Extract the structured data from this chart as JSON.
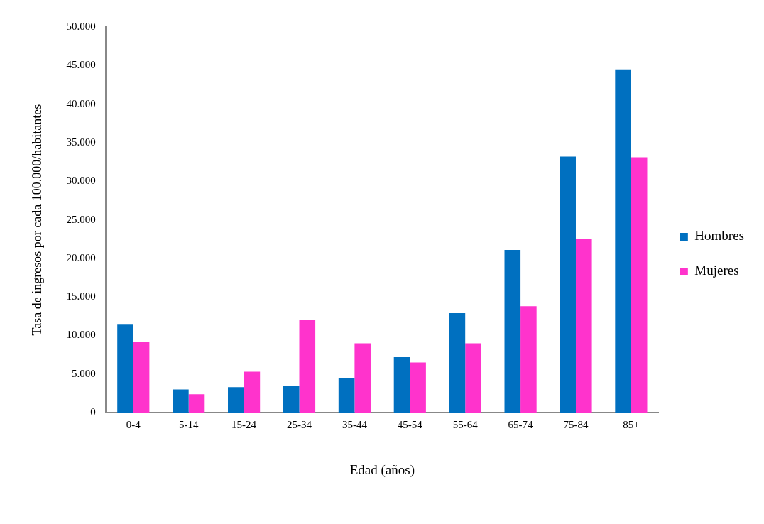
{
  "chart_data": {
    "type": "bar",
    "xlabel": "Edad (años)",
    "ylabel": "Tasa de ingresos por cada 100.000/habitantes",
    "categories": [
      "0-4",
      "5-14",
      "15-24",
      "25-34",
      "35-44",
      "45-54",
      "55-64",
      "65-74",
      "75-84",
      "85+"
    ],
    "series": [
      {
        "name": "Hombres",
        "color": "#0070c0",
        "values": [
          11400,
          3000,
          3300,
          3500,
          4500,
          7200,
          12900,
          21100,
          33200,
          44500
        ]
      },
      {
        "name": "Mujeres",
        "color": "#ff33cc",
        "values": [
          9200,
          2400,
          5300,
          12000,
          9000,
          6500,
          9000,
          13800,
          22500,
          33100
        ]
      }
    ],
    "ylim": [
      0,
      50000
    ],
    "yticks": [
      {
        "value": 0,
        "label": "0"
      },
      {
        "value": 5000,
        "label": "5.000"
      },
      {
        "value": 10000,
        "label": "10.000"
      },
      {
        "value": 15000,
        "label": "15.000"
      },
      {
        "value": 20000,
        "label": "20.000"
      },
      {
        "value": 25000,
        "label": "25.000"
      },
      {
        "value": 30000,
        "label": "30.000"
      },
      {
        "value": 35000,
        "label": "35.000"
      },
      {
        "value": 40000,
        "label": "40.000"
      },
      {
        "value": 45000,
        "label": "45.000"
      },
      {
        "value": 50000,
        "label": "50.000"
      }
    ],
    "grid": false,
    "legend": "right"
  }
}
